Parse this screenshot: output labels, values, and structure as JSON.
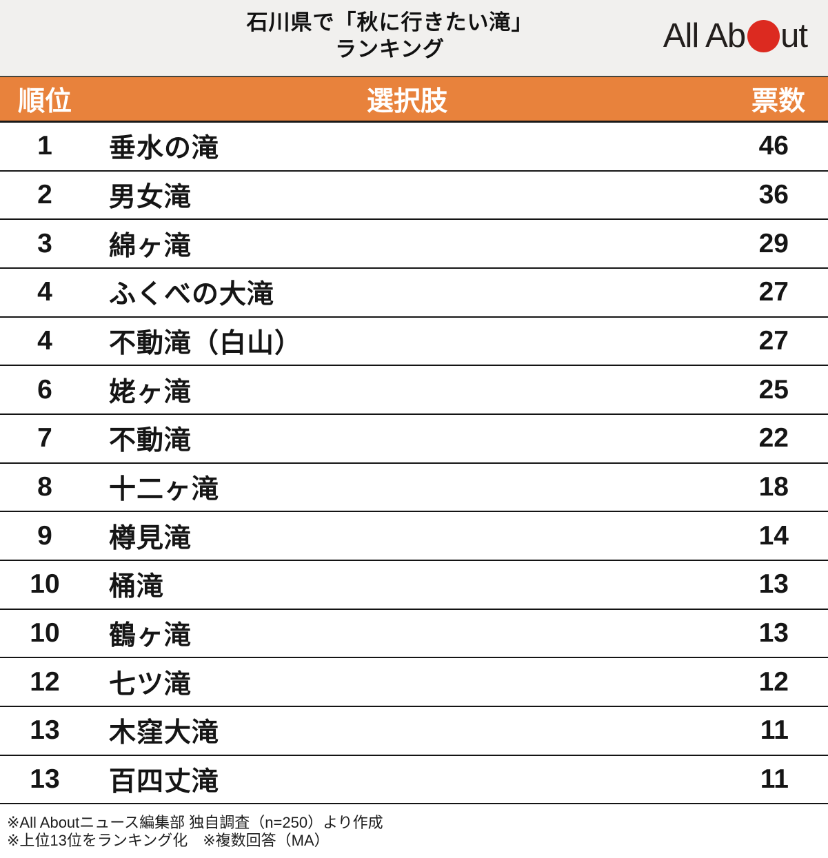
{
  "header": {
    "title_line1": "石川県で「秋に行きたい滝」",
    "title_line2": "ランキング",
    "logo": {
      "text_left": "All Ab",
      "text_right": "ut",
      "dot_color": "#dc2a20"
    }
  },
  "table": {
    "columns": {
      "rank": "順位",
      "choice": "選択肢",
      "votes": "票数"
    },
    "header_bg": "#e8823c",
    "header_text_color": "#ffffff",
    "row_border_color": "#141414",
    "rows": [
      {
        "rank": "1",
        "name": "垂水の滝",
        "votes": "46"
      },
      {
        "rank": "2",
        "name": "男女滝",
        "votes": "36"
      },
      {
        "rank": "3",
        "name": "綿ヶ滝",
        "votes": "29"
      },
      {
        "rank": "4",
        "name": "ふくべの大滝",
        "votes": "27"
      },
      {
        "rank": "4",
        "name": "不動滝（白山）",
        "votes": "27"
      },
      {
        "rank": "6",
        "name": "姥ヶ滝",
        "votes": "25"
      },
      {
        "rank": "7",
        "name": "不動滝",
        "votes": "22"
      },
      {
        "rank": "8",
        "name": "十二ヶ滝",
        "votes": "18"
      },
      {
        "rank": "9",
        "name": "樽見滝",
        "votes": "14"
      },
      {
        "rank": "10",
        "name": "桶滝",
        "votes": "13"
      },
      {
        "rank": "10",
        "name": "鶴ヶ滝",
        "votes": "13"
      },
      {
        "rank": "12",
        "name": "七ツ滝",
        "votes": "12"
      },
      {
        "rank": "13",
        "name": "木窪大滝",
        "votes": "11"
      },
      {
        "rank": "13",
        "name": "百四丈滝",
        "votes": "11"
      }
    ]
  },
  "footer": {
    "note1": "※All Aboutニュース編集部 独自調査（n=250）より作成",
    "note2": "※上位13位をランキング化　※複数回答（MA）"
  },
  "chart_data": {
    "type": "table",
    "title": "石川県で「秋に行きたい滝」ランキング",
    "columns": [
      "順位",
      "選択肢",
      "票数"
    ],
    "rows": [
      [
        1,
        "垂水の滝",
        46
      ],
      [
        2,
        "男女滝",
        36
      ],
      [
        3,
        "綿ヶ滝",
        29
      ],
      [
        4,
        "ふくべの大滝",
        27
      ],
      [
        4,
        "不動滝（白山）",
        27
      ],
      [
        6,
        "姥ヶ滝",
        25
      ],
      [
        7,
        "不動滝",
        22
      ],
      [
        8,
        "十二ヶ滝",
        18
      ],
      [
        9,
        "樽見滝",
        14
      ],
      [
        10,
        "桶滝",
        13
      ],
      [
        10,
        "鶴ヶ滝",
        13
      ],
      [
        12,
        "七ツ滝",
        12
      ],
      [
        13,
        "木窪大滝",
        11
      ],
      [
        13,
        "百四丈滝",
        11
      ]
    ],
    "notes": [
      "※All Aboutニュース編集部 独自調査（n=250）より作成",
      "※上位13位をランキング化　※複数回答（MA）"
    ]
  }
}
